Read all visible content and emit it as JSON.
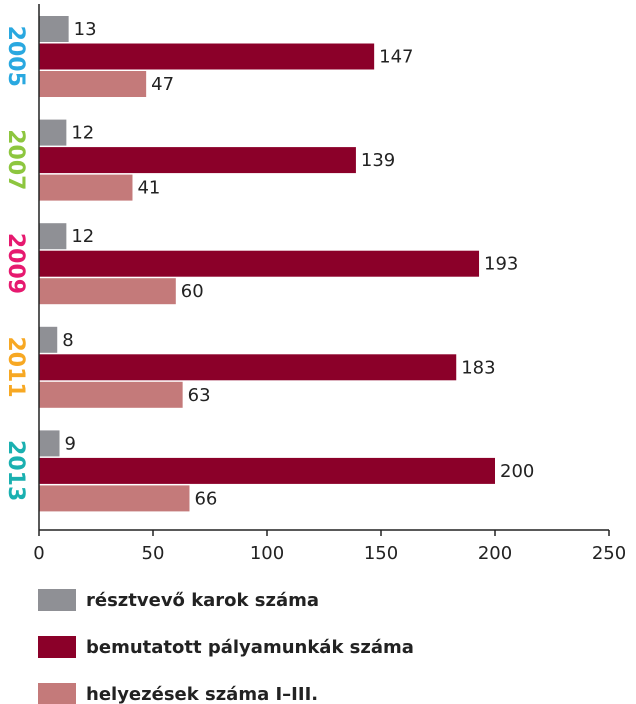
{
  "chart_data": {
    "type": "bar",
    "orientation": "horizontal",
    "categories": [
      "2005",
      "2007",
      "2009",
      "2011",
      "2013"
    ],
    "category_colors": [
      "#29a8e0",
      "#8dc63f",
      "#e6196f",
      "#f7a823",
      "#1ab0b0"
    ],
    "series": [
      {
        "name": "résztvevő karok száma",
        "color": "#8f9095",
        "values": [
          13,
          12,
          12,
          8,
          9
        ]
      },
      {
        "name": "bemutatott pályamunkák száma",
        "color": "#8b0029",
        "values": [
          147,
          139,
          193,
          183,
          200
        ]
      },
      {
        "name": "helyezések száma I–III.",
        "color": "#c47a7a",
        "values": [
          47,
          41,
          60,
          63,
          66
        ]
      }
    ],
    "xlim": [
      0,
      250
    ],
    "xticks": [
      0,
      50,
      100,
      150,
      200,
      250
    ]
  }
}
